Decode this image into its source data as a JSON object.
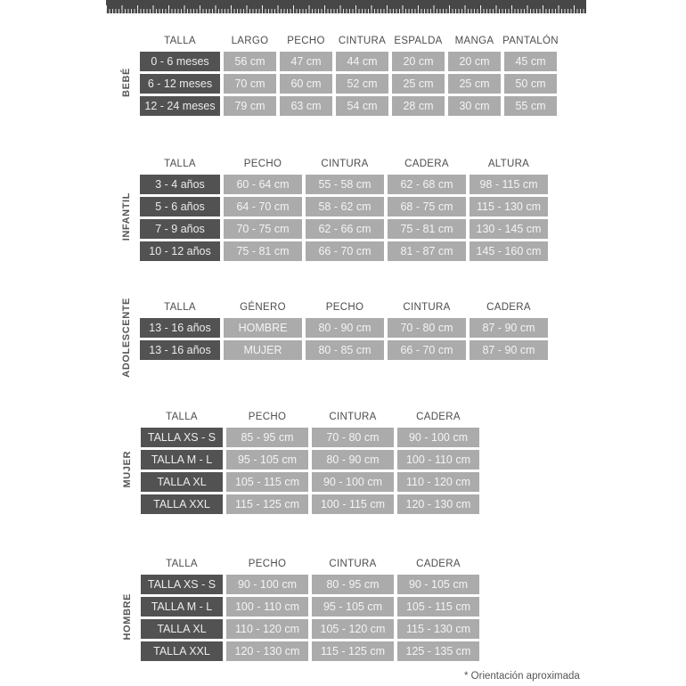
{
  "page": {
    "footnote": "* Orientación aproximada"
  },
  "ruler": {
    "icon": "measuring-tape-ruler"
  },
  "colors": {
    "ruler_bg": "#474747",
    "ruler_tick": "#e3e3e3",
    "dark_cell": "#525252",
    "value_cell": "#ababab",
    "header_text": "#4d4d4d",
    "side_label_text": "#555555"
  },
  "tables": [
    {
      "id": "bebe",
      "side_label": "BEBÉ",
      "columns": [
        "TALLA",
        "LARGO",
        "PECHO",
        "CINTURA",
        "ESPALDA",
        "MANGA",
        "PANTALÓN"
      ],
      "rows": [
        [
          "0 - 6 meses",
          "56 cm",
          "47 cm",
          "44 cm",
          "20 cm",
          "20 cm",
          "45 cm"
        ],
        [
          "6 - 12 meses",
          "70 cm",
          "60 cm",
          "52 cm",
          "25 cm",
          "25 cm",
          "50 cm"
        ],
        [
          "12 - 24 meses",
          "79 cm",
          "63 cm",
          "54 cm",
          "28 cm",
          "30 cm",
          "55 cm"
        ]
      ]
    },
    {
      "id": "infantil",
      "side_label": "INFANTIL",
      "columns": [
        "TALLA",
        "PECHO",
        "CINTURA",
        "CADERA",
        "ALTURA"
      ],
      "rows": [
        [
          "3 - 4 años",
          "60 - 64 cm",
          "55 - 58 cm",
          "62 - 68 cm",
          "98 - 115 cm"
        ],
        [
          "5 - 6 años",
          "64 - 70 cm",
          "58 - 62 cm",
          "68 - 75 cm",
          "115 - 130 cm"
        ],
        [
          "7 - 9 años",
          "70 - 75 cm",
          "62 - 66 cm",
          "75 - 81 cm",
          "130 - 145 cm"
        ],
        [
          "10 - 12 años",
          "75 - 81 cm",
          "66 - 70 cm",
          "81 - 87 cm",
          "145 - 160 cm"
        ]
      ]
    },
    {
      "id": "adolescente",
      "side_label": "ADOLESCENTE",
      "columns": [
        "TALLA",
        "GÉNERO",
        "PECHO",
        "CINTURA",
        "CADERA"
      ],
      "rows": [
        [
          "13 - 16 años",
          "HOMBRE",
          "80 - 90 cm",
          "70 - 80 cm",
          "87 - 90 cm"
        ],
        [
          "13 - 16 años",
          "MUJER",
          "80 - 85 cm",
          "66 - 70 cm",
          "87 - 90 cm"
        ]
      ]
    },
    {
      "id": "mujer",
      "side_label": "MUJER",
      "columns": [
        "TALLA",
        "PECHO",
        "CINTURA",
        "CADERA"
      ],
      "rows": [
        [
          "TALLA XS - S",
          "85 - 95 cm",
          "70 - 80 cm",
          "90 - 100 cm"
        ],
        [
          "TALLA M - L",
          "95 - 105 cm",
          "80 - 90 cm",
          "100 - 110 cm"
        ],
        [
          "TALLA XL",
          "105 - 115 cm",
          "90 - 100 cm",
          "110 - 120 cm"
        ],
        [
          "TALLA XXL",
          "115 - 125 cm",
          "100 - 115 cm",
          "120 - 130 cm"
        ]
      ]
    },
    {
      "id": "hombre",
      "side_label": "HOMBRE",
      "columns": [
        "TALLA",
        "PECHO",
        "CINTURA",
        "CADERA"
      ],
      "rows": [
        [
          "TALLA XS - S",
          "90 - 100 cm",
          "80 - 95 cm",
          "90 - 105 cm"
        ],
        [
          "TALLA M - L",
          "100 - 110 cm",
          "95 - 105 cm",
          "105 - 115 cm"
        ],
        [
          "TALLA XL",
          "110 - 120 cm",
          "105 - 120 cm",
          "115 - 130 cm"
        ],
        [
          "TALLA XXL",
          "120 - 130 cm",
          "115 - 125 cm",
          "125 - 135 cm"
        ]
      ]
    }
  ]
}
